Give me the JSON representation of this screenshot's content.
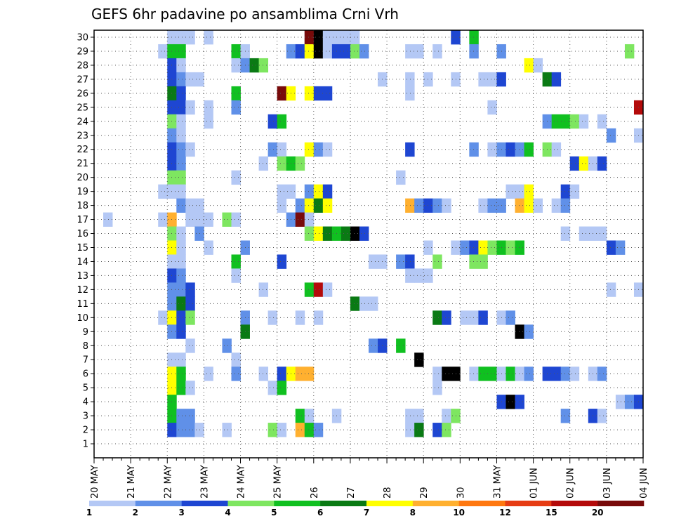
{
  "chart_data": {
    "type": "heatmap",
    "title": "GEFS 6hr padavine po ansamblima Crni Vrh",
    "x_tick_labels": [
      "20 MAY",
      "21 MAY",
      "22 MAY",
      "23 MAY",
      "24 MAY",
      "25 MAY",
      "26",
      "27",
      "28",
      "29",
      "30",
      "31 MAY",
      "01 JUN",
      "02 JUN",
      "03 JUN",
      "04 JUN"
    ],
    "x_range": [
      "20 MAY 00Z",
      "04 JUN 00Z"
    ],
    "x_step_hours": 6,
    "members": [
      1,
      2,
      3,
      4,
      5,
      6,
      7,
      8,
      9,
      10,
      11,
      12,
      13,
      14,
      15,
      16,
      17,
      18,
      19,
      20,
      21,
      22,
      23,
      24,
      25,
      26,
      27,
      28,
      29,
      30
    ],
    "grid": true,
    "colorbar": {
      "levels": [
        1,
        2,
        3,
        4,
        5,
        6,
        7,
        8,
        10,
        12,
        15,
        20
      ],
      "labels": [
        "1",
        "2",
        "3",
        "4",
        "5",
        "6",
        "7",
        "8",
        "10",
        "12",
        "15",
        "20"
      ],
      "colors": [
        "#b4c8f5",
        "#6090e8",
        "#1e46d2",
        "#7ee660",
        "#10c020",
        "#0a7a14",
        "#ffff00",
        "#ffb030",
        "#ff7810",
        "#e63c14",
        "#b40a0a",
        "#780a0a"
      ]
    },
    "cells": [
      [
        30,
        8,
        3,
        1
      ],
      [
        30,
        9,
        1,
        1
      ],
      [
        30,
        12,
        1,
        1
      ],
      [
        30,
        23,
        4,
        1
      ],
      [
        30,
        23,
        5,
        12
      ],
      [
        30,
        24,
        1,
        13
      ],
      [
        30,
        25,
        4,
        1
      ],
      [
        30,
        39,
        1,
        3
      ],
      [
        30,
        41,
        1,
        5
      ],
      [
        29,
        7,
        1,
        1
      ],
      [
        29,
        8,
        2,
        5
      ],
      [
        29,
        15,
        1,
        5
      ],
      [
        29,
        16,
        1,
        1
      ],
      [
        29,
        21,
        1,
        2
      ],
      [
        29,
        22,
        1,
        3
      ],
      [
        29,
        23,
        1,
        7
      ],
      [
        29,
        24,
        1,
        13
      ],
      [
        29,
        25,
        1,
        1
      ],
      [
        29,
        26,
        2,
        3
      ],
      [
        29,
        28,
        1,
        4
      ],
      [
        29,
        29,
        1,
        2
      ],
      [
        29,
        34,
        2,
        1
      ],
      [
        29,
        37,
        1,
        1
      ],
      [
        29,
        41,
        1,
        2
      ],
      [
        29,
        44,
        1,
        2
      ],
      [
        29,
        58,
        1,
        4
      ],
      [
        28,
        8,
        1,
        3
      ],
      [
        28,
        9,
        1,
        1
      ],
      [
        28,
        15,
        1,
        1
      ],
      [
        28,
        16,
        1,
        2
      ],
      [
        28,
        17,
        1,
        6
      ],
      [
        28,
        18,
        1,
        4
      ],
      [
        28,
        47,
        1,
        7
      ],
      [
        28,
        48,
        1,
        1
      ],
      [
        27,
        8,
        1,
        3
      ],
      [
        27,
        9,
        1,
        2
      ],
      [
        27,
        10,
        1,
        1
      ],
      [
        27,
        11,
        1,
        1
      ],
      [
        27,
        31,
        1,
        1
      ],
      [
        27,
        34,
        1,
        1
      ],
      [
        27,
        36,
        1,
        1
      ],
      [
        27,
        39,
        1,
        1
      ],
      [
        27,
        42,
        1,
        1
      ],
      [
        27,
        43,
        1,
        1
      ],
      [
        27,
        44,
        1,
        3
      ],
      [
        27,
        49,
        1,
        6
      ],
      [
        27,
        50,
        1,
        3
      ],
      [
        26,
        8,
        1,
        6
      ],
      [
        26,
        9,
        1,
        3
      ],
      [
        26,
        15,
        1,
        5
      ],
      [
        26,
        20,
        1,
        12
      ],
      [
        26,
        21,
        1,
        7
      ],
      [
        26,
        23,
        1,
        7
      ],
      [
        26,
        24,
        2,
        3
      ],
      [
        26,
        34,
        1,
        1
      ],
      [
        25,
        8,
        2,
        3
      ],
      [
        25,
        10,
        1,
        1
      ],
      [
        25,
        12,
        1,
        1
      ],
      [
        25,
        15,
        1,
        2
      ],
      [
        25,
        43,
        1,
        1
      ],
      [
        25,
        59,
        1,
        11
      ],
      [
        24,
        8,
        1,
        4
      ],
      [
        24,
        9,
        1,
        1
      ],
      [
        24,
        12,
        1,
        1
      ],
      [
        24,
        19,
        1,
        3
      ],
      [
        24,
        20,
        1,
        5
      ],
      [
        24,
        49,
        1,
        2
      ],
      [
        24,
        50,
        2,
        5
      ],
      [
        24,
        52,
        1,
        4
      ],
      [
        24,
        53,
        1,
        1
      ],
      [
        24,
        55,
        1,
        1
      ],
      [
        23,
        8,
        1,
        2
      ],
      [
        23,
        9,
        1,
        1
      ],
      [
        23,
        56,
        1,
        2
      ],
      [
        23,
        59,
        1,
        1
      ],
      [
        22,
        8,
        1,
        3
      ],
      [
        22,
        9,
        1,
        2
      ],
      [
        22,
        10,
        1,
        1
      ],
      [
        22,
        19,
        1,
        2
      ],
      [
        22,
        20,
        1,
        1
      ],
      [
        22,
        23,
        1,
        7
      ],
      [
        22,
        24,
        1,
        2
      ],
      [
        22,
        25,
        1,
        1
      ],
      [
        22,
        34,
        1,
        3
      ],
      [
        22,
        41,
        1,
        2
      ],
      [
        22,
        43,
        1,
        1
      ],
      [
        22,
        44,
        1,
        2
      ],
      [
        22,
        45,
        1,
        3
      ],
      [
        22,
        46,
        1,
        2
      ],
      [
        22,
        47,
        1,
        5
      ],
      [
        22,
        49,
        1,
        4
      ],
      [
        22,
        50,
        1,
        1
      ],
      [
        21,
        8,
        1,
        3
      ],
      [
        21,
        9,
        1,
        2
      ],
      [
        21,
        18,
        1,
        1
      ],
      [
        21,
        20,
        1,
        4
      ],
      [
        21,
        21,
        1,
        5
      ],
      [
        21,
        22,
        1,
        4
      ],
      [
        21,
        52,
        1,
        3
      ],
      [
        21,
        53,
        1,
        7
      ],
      [
        21,
        54,
        1,
        1
      ],
      [
        21,
        55,
        1,
        3
      ],
      [
        20,
        8,
        2,
        4
      ],
      [
        20,
        15,
        1,
        1
      ],
      [
        20,
        33,
        1,
        1
      ],
      [
        19,
        7,
        1,
        1
      ],
      [
        19,
        8,
        2,
        1
      ],
      [
        19,
        20,
        2,
        1
      ],
      [
        19,
        23,
        1,
        2
      ],
      [
        19,
        24,
        1,
        7
      ],
      [
        19,
        25,
        1,
        3
      ],
      [
        19,
        45,
        2,
        1
      ],
      [
        19,
        47,
        1,
        7
      ],
      [
        19,
        51,
        1,
        3
      ],
      [
        19,
        52,
        1,
        1
      ],
      [
        18,
        9,
        1,
        2
      ],
      [
        18,
        10,
        2,
        1
      ],
      [
        18,
        20,
        1,
        1
      ],
      [
        18,
        22,
        1,
        2
      ],
      [
        18,
        23,
        1,
        7
      ],
      [
        18,
        24,
        1,
        6
      ],
      [
        18,
        25,
        1,
        7
      ],
      [
        18,
        34,
        1,
        8
      ],
      [
        18,
        35,
        1,
        2
      ],
      [
        18,
        36,
        1,
        3
      ],
      [
        18,
        37,
        1,
        2
      ],
      [
        18,
        38,
        1,
        1
      ],
      [
        18,
        42,
        1,
        1
      ],
      [
        18,
        43,
        2,
        2
      ],
      [
        18,
        46,
        1,
        8
      ],
      [
        18,
        47,
        1,
        7
      ],
      [
        18,
        48,
        1,
        1
      ],
      [
        18,
        50,
        1,
        1
      ],
      [
        18,
        51,
        1,
        2
      ],
      [
        17,
        1,
        1,
        1
      ],
      [
        17,
        7,
        1,
        1
      ],
      [
        17,
        8,
        1,
        8
      ],
      [
        17,
        10,
        3,
        1
      ],
      [
        17,
        14,
        1,
        4
      ],
      [
        17,
        15,
        1,
        1
      ],
      [
        17,
        21,
        1,
        2
      ],
      [
        17,
        22,
        1,
        12
      ],
      [
        17,
        23,
        1,
        1
      ],
      [
        16,
        8,
        1,
        4
      ],
      [
        16,
        9,
        1,
        1
      ],
      [
        16,
        11,
        1,
        2
      ],
      [
        16,
        23,
        1,
        4
      ],
      [
        16,
        24,
        1,
        7
      ],
      [
        16,
        25,
        1,
        6
      ],
      [
        16,
        26,
        1,
        5
      ],
      [
        16,
        27,
        1,
        6
      ],
      [
        16,
        28,
        1,
        13
      ],
      [
        16,
        29,
        1,
        3
      ],
      [
        16,
        51,
        1,
        1
      ],
      [
        16,
        53,
        3,
        1
      ],
      [
        15,
        8,
        1,
        7
      ],
      [
        15,
        9,
        1,
        1
      ],
      [
        15,
        12,
        1,
        1
      ],
      [
        15,
        16,
        1,
        2
      ],
      [
        15,
        36,
        1,
        1
      ],
      [
        15,
        39,
        1,
        1
      ],
      [
        15,
        40,
        1,
        2
      ],
      [
        15,
        41,
        1,
        3
      ],
      [
        15,
        42,
        1,
        7
      ],
      [
        15,
        43,
        1,
        4
      ],
      [
        15,
        44,
        1,
        5
      ],
      [
        15,
        45,
        1,
        4
      ],
      [
        15,
        46,
        1,
        5
      ],
      [
        15,
        56,
        1,
        3
      ],
      [
        15,
        57,
        1,
        2
      ],
      [
        14,
        8,
        2,
        1
      ],
      [
        14,
        15,
        1,
        5
      ],
      [
        14,
        20,
        1,
        3
      ],
      [
        14,
        30,
        2,
        1
      ],
      [
        14,
        33,
        1,
        2
      ],
      [
        14,
        34,
        1,
        3
      ],
      [
        14,
        37,
        1,
        4
      ],
      [
        14,
        41,
        2,
        4
      ],
      [
        13,
        8,
        1,
        3
      ],
      [
        13,
        9,
        1,
        2
      ],
      [
        13,
        15,
        1,
        1
      ],
      [
        13,
        34,
        1,
        1
      ],
      [
        13,
        35,
        2,
        1
      ],
      [
        12,
        8,
        1,
        2
      ],
      [
        12,
        9,
        1,
        2
      ],
      [
        12,
        10,
        1,
        3
      ],
      [
        12,
        18,
        1,
        1
      ],
      [
        12,
        23,
        1,
        5
      ],
      [
        12,
        24,
        1,
        11
      ],
      [
        12,
        25,
        1,
        1
      ],
      [
        12,
        56,
        1,
        1
      ],
      [
        12,
        59,
        1,
        1
      ],
      [
        11,
        8,
        1,
        2
      ],
      [
        11,
        9,
        1,
        6
      ],
      [
        11,
        10,
        1,
        3
      ],
      [
        11,
        28,
        1,
        6
      ],
      [
        11,
        29,
        2,
        1
      ],
      [
        10,
        7,
        1,
        1
      ],
      [
        10,
        8,
        1,
        7
      ],
      [
        10,
        9,
        1,
        3
      ],
      [
        10,
        10,
        1,
        4
      ],
      [
        10,
        16,
        1,
        2
      ],
      [
        10,
        19,
        1,
        1
      ],
      [
        10,
        22,
        1,
        1
      ],
      [
        10,
        24,
        1,
        1
      ],
      [
        10,
        37,
        1,
        6
      ],
      [
        10,
        38,
        1,
        3
      ],
      [
        10,
        40,
        2,
        1
      ],
      [
        10,
        42,
        1,
        3
      ],
      [
        10,
        44,
        1,
        1
      ],
      [
        10,
        45,
        1,
        2
      ],
      [
        9,
        8,
        1,
        2
      ],
      [
        9,
        9,
        1,
        3
      ],
      [
        9,
        16,
        1,
        6
      ],
      [
        9,
        46,
        1,
        13
      ],
      [
        9,
        47,
        1,
        2
      ],
      [
        8,
        10,
        1,
        1
      ],
      [
        8,
        14,
        1,
        2
      ],
      [
        8,
        30,
        1,
        2
      ],
      [
        8,
        31,
        1,
        3
      ],
      [
        8,
        33,
        1,
        5
      ],
      [
        7,
        8,
        2,
        1
      ],
      [
        7,
        15,
        1,
        1
      ],
      [
        7,
        35,
        1,
        13
      ],
      [
        6,
        8,
        1,
        7
      ],
      [
        6,
        9,
        1,
        5
      ],
      [
        6,
        12,
        1,
        1
      ],
      [
        6,
        15,
        1,
        2
      ],
      [
        6,
        18,
        1,
        1
      ],
      [
        6,
        20,
        1,
        3
      ],
      [
        6,
        21,
        1,
        7
      ],
      [
        6,
        22,
        2,
        8
      ],
      [
        6,
        37,
        1,
        1
      ],
      [
        6,
        38,
        2,
        13
      ],
      [
        6,
        41,
        1,
        1
      ],
      [
        6,
        42,
        2,
        5
      ],
      [
        6,
        44,
        1,
        1
      ],
      [
        6,
        45,
        1,
        5
      ],
      [
        6,
        46,
        1,
        1
      ],
      [
        6,
        47,
        1,
        2
      ],
      [
        6,
        49,
        2,
        3
      ],
      [
        6,
        51,
        1,
        2
      ],
      [
        6,
        52,
        1,
        1
      ],
      [
        6,
        54,
        1,
        1
      ],
      [
        6,
        55,
        1,
        2
      ],
      [
        5,
        8,
        1,
        7
      ],
      [
        5,
        9,
        1,
        5
      ],
      [
        5,
        10,
        1,
        1
      ],
      [
        5,
        19,
        1,
        1
      ],
      [
        5,
        20,
        1,
        5
      ],
      [
        5,
        37,
        1,
        1
      ],
      [
        4,
        8,
        1,
        5
      ],
      [
        4,
        44,
        1,
        3
      ],
      [
        4,
        45,
        1,
        13
      ],
      [
        4,
        46,
        1,
        3
      ],
      [
        4,
        57,
        1,
        1
      ],
      [
        4,
        58,
        1,
        2
      ],
      [
        4,
        59,
        1,
        3
      ],
      [
        3,
        8,
        1,
        5
      ],
      [
        3,
        9,
        1,
        2
      ],
      [
        3,
        10,
        1,
        2
      ],
      [
        3,
        22,
        1,
        5
      ],
      [
        3,
        23,
        1,
        1
      ],
      [
        3,
        26,
        1,
        1
      ],
      [
        3,
        34,
        2,
        1
      ],
      [
        3,
        38,
        1,
        1
      ],
      [
        3,
        39,
        1,
        4
      ],
      [
        3,
        51,
        1,
        2
      ],
      [
        3,
        54,
        1,
        3
      ],
      [
        3,
        55,
        1,
        1
      ],
      [
        2,
        8,
        1,
        3
      ],
      [
        2,
        9,
        1,
        2
      ],
      [
        2,
        10,
        1,
        2
      ],
      [
        2,
        11,
        1,
        1
      ],
      [
        2,
        14,
        1,
        1
      ],
      [
        2,
        19,
        1,
        4
      ],
      [
        2,
        20,
        1,
        1
      ],
      [
        2,
        22,
        1,
        8
      ],
      [
        2,
        23,
        1,
        5
      ],
      [
        2,
        24,
        1,
        2
      ],
      [
        2,
        34,
        1,
        1
      ],
      [
        2,
        35,
        1,
        6
      ],
      [
        2,
        37,
        1,
        3
      ],
      [
        2,
        38,
        1,
        4
      ]
    ]
  }
}
